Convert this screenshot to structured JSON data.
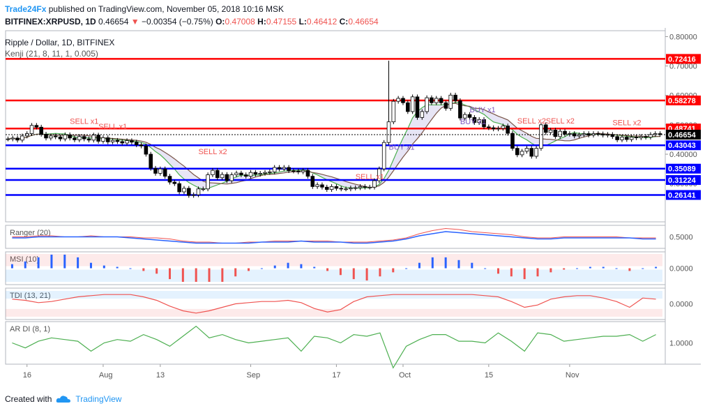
{
  "header": {
    "publisher": "Trade24Fx",
    "published_text": "published on TradingView.com, November 05, 2018 10:16 MSK",
    "symbol": "BITFINEX:XRPUSD, 1D",
    "last": "0.46654",
    "change_arrow": "▼",
    "change": "−0.00354 (−0.75%)",
    "o_label": "O:",
    "o": "0.47008",
    "h_label": "H:",
    "h": "0.47155",
    "l_label": "L:",
    "l": "0.46412",
    "c_label": "C:",
    "c": "0.46654"
  },
  "legend": {
    "title": "Ripple / Dollar, 1D, BITFINEX",
    "indicator": "Kenji (21, 8, 11, 1, 0.005)"
  },
  "footer": {
    "created_with": "Created with",
    "brand": "TradingView"
  },
  "chart_data": [
    {
      "type": "candlestick",
      "name": "main",
      "ylim": [
        0.17,
        0.82
      ],
      "x_ticks": [
        "16",
        "Aug",
        "13",
        "Sep",
        "17",
        "Oct",
        "15",
        "Nov"
      ],
      "y_ticks": [
        "0.80000",
        "0.70000",
        "0.60000",
        "0.50000",
        "0.40000",
        "0.30000"
      ],
      "levels": [
        {
          "value": 0.72416,
          "label": "0.72416",
          "color": "#ff0000"
        },
        {
          "value": 0.58278,
          "label": "0.58278",
          "color": "#ff0000"
        },
        {
          "value": 0.48741,
          "label": "0.48741",
          "color": "#ff0000"
        },
        {
          "value": 0.43043,
          "label": "0.43043",
          "color": "#0000ff"
        },
        {
          "value": 0.35089,
          "label": "0.35089",
          "color": "#0000ff"
        },
        {
          "value": 0.31224,
          "label": "0.31224",
          "color": "#0000ff"
        },
        {
          "value": 0.26141,
          "label": "0.26141",
          "color": "#0000ff"
        }
      ],
      "last_price": {
        "value": 0.46654,
        "label": "0.46654"
      },
      "closes": [
        0.452,
        0.455,
        0.448,
        0.462,
        0.47,
        0.498,
        0.492,
        0.468,
        0.455,
        0.462,
        0.459,
        0.452,
        0.466,
        0.455,
        0.449,
        0.46,
        0.452,
        0.448,
        0.465,
        0.444,
        0.456,
        0.442,
        0.447,
        0.443,
        0.438,
        0.446,
        0.441,
        0.432,
        0.428,
        0.4,
        0.352,
        0.335,
        0.35,
        0.325,
        0.305,
        0.3,
        0.272,
        0.284,
        0.26,
        0.262,
        0.282,
        0.282,
        0.33,
        0.345,
        0.32,
        0.331,
        0.31,
        0.33,
        0.336,
        0.33,
        0.325,
        0.338,
        0.332,
        0.335,
        0.338,
        0.34,
        0.355,
        0.35,
        0.355,
        0.344,
        0.343,
        0.34,
        0.345,
        0.325,
        0.29,
        0.296,
        0.288,
        0.28,
        0.29,
        0.284,
        0.282,
        0.282,
        0.285,
        0.286,
        0.29,
        0.288,
        0.288,
        0.31,
        0.35,
        0.44,
        0.51,
        0.58,
        0.59,
        0.575,
        0.545,
        0.595,
        0.525,
        0.545,
        0.592,
        0.575,
        0.59,
        0.575,
        0.556,
        0.601,
        0.582,
        0.523,
        0.535,
        0.525,
        0.508,
        0.518,
        0.493,
        0.49,
        0.486,
        0.488,
        0.496,
        0.471,
        0.42,
        0.398,
        0.41,
        0.42,
        0.393,
        0.42,
        0.5,
        0.474,
        0.482,
        0.46,
        0.478,
        0.468,
        0.47,
        0.462,
        0.466,
        0.47,
        0.465,
        0.47,
        0.469,
        0.465,
        0.467,
        0.46,
        0.449,
        0.458,
        0.45,
        0.458,
        0.456,
        0.46,
        0.458,
        0.467,
        0.47,
        0.467
      ],
      "signals": [
        {
          "label": "SELL x1",
          "index": 13,
          "price": 0.503,
          "color": "#ef5350"
        },
        {
          "label": "SELL x1",
          "index": 19,
          "price": 0.486,
          "color": "#ef5350"
        },
        {
          "label": "SELL x2",
          "index": 40,
          "price": 0.4,
          "color": "#ef5350"
        },
        {
          "label": "SELL x1",
          "index": 73,
          "price": 0.315,
          "color": "#ef5350"
        },
        {
          "label": "BUY x1",
          "index": 80,
          "price": 0.415,
          "color": "#7e57c2"
        },
        {
          "label": "BUY x1",
          "index": 97,
          "price": 0.542,
          "color": "#7e57c2"
        },
        {
          "label": "BUY x1",
          "index": 95,
          "price": 0.502,
          "color": "#7e57c2"
        },
        {
          "label": "SELL x2",
          "index": 107,
          "price": 0.505,
          "color": "#ef5350"
        },
        {
          "label": "SELL x2",
          "index": 113,
          "price": 0.505,
          "color": "#ef5350"
        },
        {
          "label": "SELL x2",
          "index": 127,
          "price": 0.498,
          "color": "#ef5350"
        }
      ]
    },
    {
      "type": "line",
      "name": "Ranger",
      "title": "Ranger (20)",
      "tick": "0.5000",
      "series_fast": [
        0.5,
        0.5,
        0.51,
        0.51,
        0.5,
        0.5,
        0.51,
        0.5,
        0.5,
        0.5,
        0.49,
        0.49,
        0.48,
        0.46,
        0.45,
        0.45,
        0.44,
        0.44,
        0.45,
        0.45,
        0.46,
        0.46,
        0.46,
        0.46,
        0.46,
        0.45,
        0.45,
        0.45,
        0.46,
        0.47,
        0.49,
        0.53,
        0.56,
        0.58,
        0.57,
        0.55,
        0.54,
        0.53,
        0.52,
        0.5,
        0.49,
        0.49,
        0.5,
        0.5,
        0.5,
        0.5,
        0.5,
        0.49,
        0.49,
        0.49
      ],
      "series_slow": [
        0.49,
        0.49,
        0.5,
        0.5,
        0.5,
        0.5,
        0.5,
        0.5,
        0.5,
        0.49,
        0.48,
        0.47,
        0.46,
        0.45,
        0.44,
        0.44,
        0.44,
        0.44,
        0.44,
        0.45,
        0.45,
        0.45,
        0.46,
        0.45,
        0.45,
        0.45,
        0.44,
        0.44,
        0.45,
        0.46,
        0.48,
        0.51,
        0.53,
        0.55,
        0.54,
        0.53,
        0.52,
        0.51,
        0.5,
        0.49,
        0.48,
        0.48,
        0.49,
        0.49,
        0.49,
        0.49,
        0.49,
        0.49,
        0.48,
        0.48
      ]
    },
    {
      "type": "bar",
      "name": "MSI",
      "title": "MSI (10)",
      "tick": "0.0000",
      "values": [
        0.3,
        0.5,
        0.8,
        1.0,
        1.0,
        0.8,
        0.4,
        0.2,
        0.1,
        0.0,
        -0.2,
        -0.4,
        -0.8,
        -1.0,
        -1.0,
        -1.0,
        -1.0,
        -0.6,
        -0.2,
        0.0,
        0.2,
        0.4,
        0.3,
        0.1,
        -0.2,
        -0.5,
        -0.8,
        -0.9,
        -0.6,
        -0.3,
        0.0,
        0.4,
        0.8,
        0.8,
        0.6,
        0.4,
        0.0,
        -0.4,
        -0.6,
        -0.8,
        -0.6,
        -0.3,
        -0.1,
        0.0,
        0.1,
        0.1,
        0.0,
        -0.2,
        0.0,
        0.1
      ]
    },
    {
      "type": "line",
      "name": "TDI",
      "title": "TDI (13, 21)",
      "tick": "0.0000",
      "values": [
        0.4,
        0.3,
        0.1,
        0.2,
        0.4,
        0.6,
        0.7,
        0.8,
        0.8,
        0.8,
        0.6,
        0.3,
        -0.2,
        -0.6,
        -0.8,
        -0.6,
        -0.3,
        0.0,
        0.1,
        0.2,
        0.2,
        0.3,
        0.1,
        -0.4,
        -0.7,
        -0.5,
        0.2,
        0.6,
        0.7,
        0.8,
        0.8,
        0.8,
        0.8,
        0.8,
        0.8,
        0.8,
        0.7,
        0.6,
        0.2,
        -0.3,
        -0.1,
        0.4,
        0.6,
        0.7,
        0.7,
        0.5,
        0.2,
        -0.3,
        0.5,
        0.4
      ]
    },
    {
      "type": "line",
      "name": "AR DI",
      "title": "AR DI (8, 1)",
      "tick": "1.0000",
      "values": [
        0.0,
        -0.3,
        0.1,
        0.3,
        0.2,
        0.1,
        -0.5,
        0.0,
        0.2,
        0.1,
        0.5,
        0.2,
        -0.2,
        0.4,
        1.0,
        0.3,
        0.5,
        0.2,
        0.0,
        0.1,
        0.2,
        0.3,
        -0.5,
        0.4,
        0.3,
        0.0,
        0.5,
        0.4,
        0.6,
        -1.5,
        -0.2,
        0.2,
        0.5,
        0.5,
        0.1,
        0.1,
        0.0,
        0.6,
        0.1,
        -0.5,
        0.6,
        0.5,
        0.1,
        0.2,
        0.3,
        0.4,
        0.4,
        0.5,
        0.1,
        0.5
      ]
    }
  ]
}
